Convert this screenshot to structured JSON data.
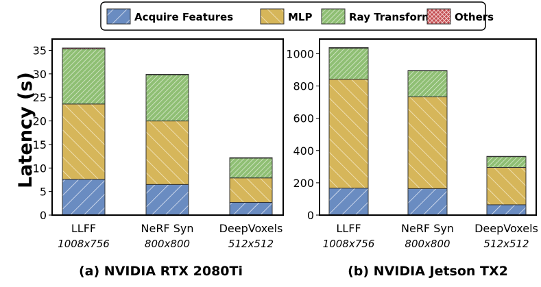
{
  "legend": {
    "placement": "top-center",
    "entries": [
      {
        "name": "Acquire Features",
        "color": "#6a8cc1",
        "hatch": "backslash"
      },
      {
        "name": "MLP",
        "color": "#d6b65a",
        "hatch": "slash"
      },
      {
        "name": "Ray Transformer",
        "color": "#8fbf74",
        "hatch": "dense-backslash"
      },
      {
        "name": "Others",
        "color": "#c44e52",
        "hatch": "cross"
      }
    ]
  },
  "ylabel": "Latency (s)",
  "chart_data": [
    {
      "type": "bar",
      "stacked": true,
      "title": "(a) NVIDIA RTX 2080Ti",
      "categories": [
        "LLFF",
        "NeRF Syn",
        "DeepVoxels"
      ],
      "subcategories": [
        "1008x756",
        "800x800",
        "512x512"
      ],
      "ylim": [
        0,
        37.4
      ],
      "yticks": [
        0,
        5,
        10,
        15,
        20,
        25,
        30,
        35
      ],
      "series": [
        {
          "name": "Acquire Features",
          "values": [
            7.6,
            6.5,
            2.7
          ]
        },
        {
          "name": "MLP",
          "values": [
            16.0,
            13.5,
            5.2
          ]
        },
        {
          "name": "Ray Transformer",
          "values": [
            11.7,
            9.8,
            4.2
          ]
        },
        {
          "name": "Others",
          "values": [
            0.2,
            0.1,
            0.1
          ]
        }
      ]
    },
    {
      "type": "bar",
      "stacked": true,
      "title": "(b) NVIDIA Jetson TX2",
      "categories": [
        "LLFF",
        "NeRF Syn",
        "DeepVoxels"
      ],
      "subcategories": [
        "1008x756",
        "800x800",
        "512x512"
      ],
      "ylim": [
        0,
        1091
      ],
      "yticks": [
        0,
        200,
        400,
        600,
        800,
        1000
      ],
      "series": [
        {
          "name": "Acquire Features",
          "values": [
            167,
            164,
            64
          ]
        },
        {
          "name": "MLP",
          "values": [
            675,
            569,
            231
          ]
        },
        {
          "name": "Ray Transformer",
          "values": [
            193,
            161,
            68
          ]
        },
        {
          "name": "Others",
          "values": [
            3,
            2,
            1
          ]
        }
      ]
    }
  ]
}
